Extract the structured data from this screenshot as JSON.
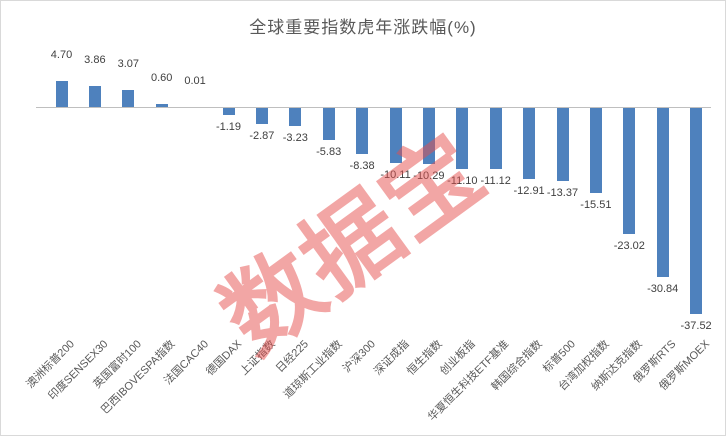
{
  "title": "全球重要指数虎年涨跌幅(%)",
  "watermark": "数据宝",
  "colors": {
    "bar": "#4e81bd",
    "title_text": "#595959",
    "data_label_text": "#404040",
    "category_label_text": "#595959",
    "axis_line": "#bfbfbf",
    "watermark_pink": "rgba(229,77,75,0.5)",
    "border": "#d9d9d9"
  },
  "chart_data": {
    "type": "bar",
    "title": "全球重要指数虎年涨跌幅(%)",
    "xlabel": "",
    "ylabel": "",
    "grid": false,
    "legend": false,
    "value_axis_visible": false,
    "data_labels_visible": true,
    "data_label_format": "0.00",
    "ylim": [
      -40,
      8
    ],
    "categories": [
      "澳洲标普200",
      "印度SENSEX30",
      "英国富时100",
      "巴西IBOVESPA指数",
      "法国CAC40",
      "德国DAX",
      "上证指数",
      "日经225",
      "道琼斯工业指数",
      "沪深300",
      "深证成指",
      "恒生指数",
      "创业板指",
      "华夏恒生科技ETF基准",
      "韩国综合指数",
      "标普500",
      "台湾加权指数",
      "纳斯达克指数",
      "俄罗斯RTS",
      "俄罗斯MOEX"
    ],
    "values": [
      4.7,
      3.86,
      3.07,
      0.6,
      0.01,
      -1.19,
      -2.87,
      -3.23,
      -5.83,
      -8.38,
      -10.11,
      -10.29,
      -11.1,
      -11.12,
      -12.91,
      -13.37,
      -15.51,
      -23.02,
      -30.84,
      -37.52
    ]
  }
}
